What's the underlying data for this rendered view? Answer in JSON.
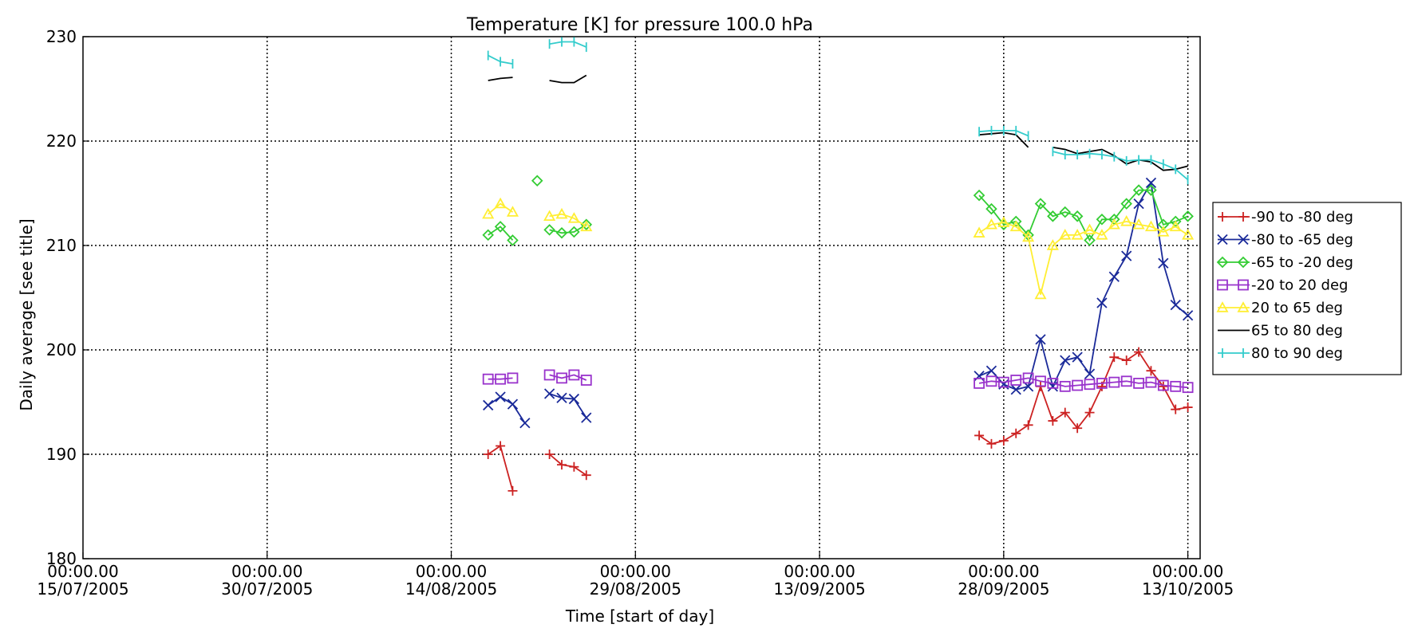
{
  "chart_data": {
    "type": "line",
    "title": "Temperature [K] for pressure 100.0 hPa",
    "xlabel": "Time [start of day]",
    "ylabel": "Daily average [see title]",
    "x_unit": "date",
    "xlim": [
      "2005-07-15",
      "2005-10-14"
    ],
    "ylim": [
      180,
      230
    ],
    "grid": true,
    "legend_position": "right",
    "x_ticks": [
      {
        "date": "2005-07-15",
        "time": "00:00.00",
        "label": "15/07/2005"
      },
      {
        "date": "2005-07-30",
        "time": "00:00.00",
        "label": "30/07/2005"
      },
      {
        "date": "2005-08-14",
        "time": "00:00.00",
        "label": "14/08/2005"
      },
      {
        "date": "2005-08-29",
        "time": "00:00.00",
        "label": "29/08/2005"
      },
      {
        "date": "2005-09-13",
        "time": "00:00.00",
        "label": "13/09/2005"
      },
      {
        "date": "2005-09-28",
        "time": "00:00.00",
        "label": "28/09/2005"
      },
      {
        "date": "2005-10-13",
        "time": "00:00.00",
        "label": "13/10/2005"
      }
    ],
    "y_ticks": [
      180,
      190,
      200,
      210,
      220,
      230
    ],
    "series": [
      {
        "name": "-90 to -80 deg",
        "color": "#cc2222",
        "marker": "plus",
        "segments": [
          [
            [
              "2005-08-17",
              190.0
            ],
            [
              "2005-08-18",
              190.8
            ],
            [
              "2005-08-19",
              186.5
            ]
          ],
          [
            [
              "2005-08-22",
              190.0
            ],
            [
              "2005-08-23",
              189.0
            ],
            [
              "2005-08-24",
              188.8
            ],
            [
              "2005-08-25",
              188.0
            ]
          ],
          [
            [
              "2005-09-26",
              191.8
            ],
            [
              "2005-09-27",
              191.0
            ],
            [
              "2005-09-28",
              191.3
            ],
            [
              "2005-09-29",
              192.0
            ],
            [
              "2005-09-30",
              192.8
            ],
            [
              "2005-10-01",
              196.5
            ],
            [
              "2005-10-02",
              193.2
            ],
            [
              "2005-10-03",
              194.0
            ],
            [
              "2005-10-04",
              192.5
            ],
            [
              "2005-10-05",
              194.0
            ],
            [
              "2005-10-06",
              196.5
            ],
            [
              "2005-10-07",
              199.3
            ],
            [
              "2005-10-08",
              199.0
            ],
            [
              "2005-10-09",
              199.8
            ],
            [
              "2005-10-10",
              198.0
            ],
            [
              "2005-10-11",
              196.5
            ],
            [
              "2005-10-12",
              194.3
            ],
            [
              "2005-10-13",
              194.5
            ]
          ]
        ]
      },
      {
        "name": "-80 to -65 deg",
        "color": "#1a2a99",
        "marker": "x",
        "segments": [
          [
            [
              "2005-08-17",
              194.7
            ],
            [
              "2005-08-18",
              195.5
            ],
            [
              "2005-08-19",
              194.8
            ],
            [
              "2005-08-20",
              193.0
            ]
          ],
          [
            [
              "2005-08-22",
              195.8
            ],
            [
              "2005-08-23",
              195.4
            ],
            [
              "2005-08-24",
              195.3
            ],
            [
              "2005-08-25",
              193.5
            ]
          ],
          [
            [
              "2005-09-26",
              197.5
            ],
            [
              "2005-09-27",
              198.0
            ],
            [
              "2005-09-28",
              196.7
            ],
            [
              "2005-09-29",
              196.2
            ],
            [
              "2005-09-30",
              196.5
            ],
            [
              "2005-10-01",
              201.0
            ],
            [
              "2005-10-02",
              196.5
            ],
            [
              "2005-10-03",
              199.0
            ],
            [
              "2005-10-04",
              199.3
            ],
            [
              "2005-10-05",
              197.7
            ],
            [
              "2005-10-06",
              204.5
            ],
            [
              "2005-10-07",
              207.0
            ],
            [
              "2005-10-08",
              209.0
            ],
            [
              "2005-10-09",
              214.0
            ],
            [
              "2005-10-10",
              216.0
            ],
            [
              "2005-10-11",
              208.3
            ],
            [
              "2005-10-12",
              204.3
            ],
            [
              "2005-10-13",
              203.3
            ]
          ]
        ]
      },
      {
        "name": "-65 to -20 deg",
        "color": "#33cc33",
        "marker": "diamond",
        "segments": [
          [
            [
              "2005-08-17",
              211.0
            ],
            [
              "2005-08-18",
              211.8
            ],
            [
              "2005-08-19",
              210.5
            ]
          ],
          [
            [
              "2005-08-21",
              216.2
            ]
          ],
          [
            [
              "2005-08-22",
              211.5
            ],
            [
              "2005-08-23",
              211.2
            ],
            [
              "2005-08-24",
              211.3
            ],
            [
              "2005-08-25",
              212.0
            ]
          ],
          [
            [
              "2005-09-26",
              214.8
            ],
            [
              "2005-09-27",
              213.5
            ],
            [
              "2005-09-28",
              212.0
            ],
            [
              "2005-09-29",
              212.3
            ],
            [
              "2005-09-30",
              211.0
            ],
            [
              "2005-10-01",
              214.0
            ],
            [
              "2005-10-02",
              212.8
            ],
            [
              "2005-10-03",
              213.2
            ],
            [
              "2005-10-04",
              212.8
            ],
            [
              "2005-10-05",
              210.5
            ],
            [
              "2005-10-06",
              212.5
            ],
            [
              "2005-10-07",
              212.5
            ],
            [
              "2005-10-08",
              214.0
            ],
            [
              "2005-10-09",
              215.3
            ],
            [
              "2005-10-10",
              215.3
            ],
            [
              "2005-10-11",
              212.0
            ],
            [
              "2005-10-12",
              212.3
            ],
            [
              "2005-10-13",
              212.8
            ]
          ]
        ]
      },
      {
        "name": "-20 to 20 deg",
        "color": "#9933cc",
        "marker": "square",
        "segments": [
          [
            [
              "2005-08-17",
              197.2
            ],
            [
              "2005-08-18",
              197.2
            ],
            [
              "2005-08-19",
              197.3
            ]
          ],
          [
            [
              "2005-08-22",
              197.6
            ],
            [
              "2005-08-23",
              197.3
            ],
            [
              "2005-08-24",
              197.6
            ],
            [
              "2005-08-25",
              197.1
            ]
          ],
          [
            [
              "2005-09-26",
              196.8
            ],
            [
              "2005-09-27",
              197.0
            ],
            [
              "2005-09-28",
              196.9
            ],
            [
              "2005-09-29",
              197.1
            ],
            [
              "2005-09-30",
              197.3
            ],
            [
              "2005-10-01",
              197.0
            ],
            [
              "2005-10-02",
              196.8
            ],
            [
              "2005-10-03",
              196.5
            ],
            [
              "2005-10-04",
              196.6
            ],
            [
              "2005-10-05",
              196.7
            ],
            [
              "2005-10-06",
              196.8
            ],
            [
              "2005-10-07",
              196.9
            ],
            [
              "2005-10-08",
              197.0
            ],
            [
              "2005-10-09",
              196.8
            ],
            [
              "2005-10-10",
              196.9
            ],
            [
              "2005-10-11",
              196.6
            ],
            [
              "2005-10-12",
              196.5
            ],
            [
              "2005-10-13",
              196.4
            ]
          ]
        ]
      },
      {
        "name": "20 to 65 deg",
        "color": "#ffee33",
        "marker": "triangle",
        "segments": [
          [
            [
              "2005-08-17",
              213.0
            ],
            [
              "2005-08-18",
              214.0
            ],
            [
              "2005-08-19",
              213.2
            ]
          ],
          [
            [
              "2005-08-22",
              212.8
            ],
            [
              "2005-08-23",
              213.0
            ],
            [
              "2005-08-24",
              212.6
            ],
            [
              "2005-08-25",
              211.8
            ]
          ],
          [
            [
              "2005-09-26",
              211.2
            ],
            [
              "2005-09-27",
              212.0
            ],
            [
              "2005-09-28",
              212.2
            ],
            [
              "2005-09-29",
              211.8
            ],
            [
              "2005-09-30",
              210.8
            ],
            [
              "2005-10-01",
              205.3
            ],
            [
              "2005-10-02",
              210.0
            ],
            [
              "2005-10-03",
              211.0
            ],
            [
              "2005-10-04",
              211.0
            ],
            [
              "2005-10-05",
              211.5
            ],
            [
              "2005-10-06",
              211.0
            ],
            [
              "2005-10-07",
              212.0
            ],
            [
              "2005-10-08",
              212.3
            ],
            [
              "2005-10-09",
              212.0
            ],
            [
              "2005-10-10",
              211.8
            ],
            [
              "2005-10-11",
              211.3
            ],
            [
              "2005-10-12",
              211.8
            ],
            [
              "2005-10-13",
              211.0
            ]
          ]
        ]
      },
      {
        "name": "65 to 80 deg",
        "color": "#000000",
        "marker": "none",
        "segments": [
          [
            [
              "2005-08-17",
              225.8
            ],
            [
              "2005-08-18",
              226.0
            ],
            [
              "2005-08-19",
              226.1
            ]
          ],
          [
            [
              "2005-08-22",
              225.8
            ],
            [
              "2005-08-23",
              225.6
            ],
            [
              "2005-08-24",
              225.6
            ],
            [
              "2005-08-25",
              226.3
            ]
          ],
          [
            [
              "2005-09-26",
              220.6
            ],
            [
              "2005-09-27",
              220.7
            ],
            [
              "2005-09-28",
              220.8
            ],
            [
              "2005-09-29",
              220.6
            ],
            [
              "2005-09-30",
              219.4
            ]
          ],
          [
            [
              "2005-10-02",
              219.4
            ],
            [
              "2005-10-03",
              219.2
            ],
            [
              "2005-10-04",
              218.8
            ],
            [
              "2005-10-05",
              219.0
            ],
            [
              "2005-10-06",
              219.2
            ],
            [
              "2005-10-07",
              218.6
            ],
            [
              "2005-10-08",
              217.8
            ],
            [
              "2005-10-09",
              218.2
            ],
            [
              "2005-10-10",
              218.0
            ],
            [
              "2005-10-11",
              217.2
            ],
            [
              "2005-10-12",
              217.3
            ],
            [
              "2005-10-13",
              217.6
            ]
          ]
        ]
      },
      {
        "name": "80 to 90 deg",
        "color": "#33cccc",
        "marker": "hbar",
        "segments": [
          [
            [
              "2005-08-17",
              228.2
            ],
            [
              "2005-08-18",
              227.6
            ],
            [
              "2005-08-19",
              227.4
            ]
          ],
          [
            [
              "2005-08-22",
              229.3
            ],
            [
              "2005-08-23",
              229.5
            ],
            [
              "2005-08-24",
              229.5
            ],
            [
              "2005-08-25",
              229.0
            ]
          ],
          [
            [
              "2005-09-26",
              220.9
            ],
            [
              "2005-09-27",
              221.0
            ],
            [
              "2005-09-28",
              221.0
            ],
            [
              "2005-09-29",
              221.0
            ],
            [
              "2005-09-30",
              220.5
            ]
          ],
          [
            [
              "2005-10-02",
              219.0
            ],
            [
              "2005-10-03",
              218.7
            ],
            [
              "2005-10-04",
              218.7
            ],
            [
              "2005-10-05",
              218.8
            ],
            [
              "2005-10-06",
              218.7
            ],
            [
              "2005-10-07",
              218.5
            ],
            [
              "2005-10-08",
              218.1
            ],
            [
              "2005-10-09",
              218.2
            ],
            [
              "2005-10-10",
              218.2
            ],
            [
              "2005-10-11",
              217.8
            ],
            [
              "2005-10-12",
              217.3
            ],
            [
              "2005-10-13",
              216.3
            ]
          ]
        ]
      }
    ]
  }
}
